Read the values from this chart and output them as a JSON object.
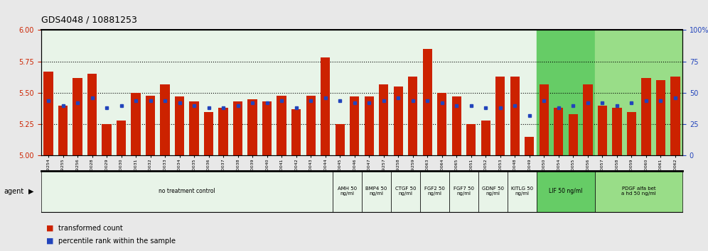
{
  "title": "GDS4048 / 10881253",
  "categories": [
    "GSM509254",
    "GSM509255",
    "GSM509256",
    "GSM510028",
    "GSM510029",
    "GSM510030",
    "GSM510031",
    "GSM510032",
    "GSM510033",
    "GSM510034",
    "GSM510035",
    "GSM510036",
    "GSM510037",
    "GSM510038",
    "GSM510039",
    "GSM510040",
    "GSM510041",
    "GSM510042",
    "GSM510043",
    "GSM510044",
    "GSM510045",
    "GSM510046",
    "GSM510047",
    "GSM509257",
    "GSM509258",
    "GSM509259",
    "GSM510063",
    "GSM510064",
    "GSM510065",
    "GSM510051",
    "GSM510052",
    "GSM510053",
    "GSM510048",
    "GSM510049",
    "GSM510050",
    "GSM510054",
    "GSM510055",
    "GSM510056",
    "GSM510057",
    "GSM510058",
    "GSM510059",
    "GSM510060",
    "GSM510061",
    "GSM510062"
  ],
  "bar_values": [
    5.67,
    5.4,
    5.62,
    5.65,
    5.25,
    5.28,
    5.5,
    5.48,
    5.57,
    5.47,
    5.43,
    5.35,
    5.38,
    5.43,
    5.45,
    5.43,
    5.48,
    5.37,
    5.48,
    5.78,
    5.25,
    5.47,
    5.47,
    5.57,
    5.55,
    5.63,
    5.85,
    5.5,
    5.47,
    5.25,
    5.28,
    5.63,
    5.63,
    5.15,
    5.57,
    5.38,
    5.33,
    5.57,
    5.4,
    5.38,
    5.35,
    5.62,
    5.6,
    5.63
  ],
  "percentile_values": [
    44,
    40,
    42,
    46,
    38,
    40,
    44,
    44,
    44,
    42,
    40,
    38,
    38,
    40,
    42,
    42,
    44,
    38,
    44,
    46,
    44,
    42,
    42,
    44,
    46,
    44,
    44,
    42,
    40,
    40,
    38,
    38,
    40,
    32,
    44,
    38,
    40,
    42,
    42,
    40,
    42,
    44,
    44,
    46
  ],
  "agent_groups": [
    {
      "label": "no treatment control",
      "start": 0,
      "end": 19,
      "color": "#e8f4e8"
    },
    {
      "label": "AMH 50\nng/ml",
      "start": 20,
      "end": 21,
      "color": "#e8f4e8"
    },
    {
      "label": "BMP4 50\nng/ml",
      "start": 22,
      "end": 23,
      "color": "#e8f4e8"
    },
    {
      "label": "CTGF 50\nng/ml",
      "start": 24,
      "end": 25,
      "color": "#e8f4e8"
    },
    {
      "label": "FGF2 50\nng/ml",
      "start": 26,
      "end": 27,
      "color": "#e8f4e8"
    },
    {
      "label": "FGF7 50\nng/ml",
      "start": 28,
      "end": 29,
      "color": "#e8f4e8"
    },
    {
      "label": "GDNF 50\nng/ml",
      "start": 30,
      "end": 31,
      "color": "#e8f4e8"
    },
    {
      "label": "KITLG 50\nng/ml",
      "start": 32,
      "end": 33,
      "color": "#e8f4e8"
    },
    {
      "label": "LIF 50 ng/ml",
      "start": 34,
      "end": 37,
      "color": "#66cc66"
    },
    {
      "label": "PDGF alfa bet\na hd 50 ng/ml",
      "start": 38,
      "end": 43,
      "color": "#99dd88"
    }
  ],
  "y_min": 5.0,
  "y_max": 6.0,
  "y_ticks": [
    5.0,
    5.25,
    5.5,
    5.75,
    6.0
  ],
  "right_y_ticks": [
    0,
    25,
    50,
    75,
    100
  ],
  "bar_color": "#cc2200",
  "dot_color": "#2244bb",
  "background_color": "#e8e8e8",
  "plot_bg_color": "#ffffff",
  "hline_values": [
    5.25,
    5.5,
    5.75
  ],
  "title_fontsize": 9
}
